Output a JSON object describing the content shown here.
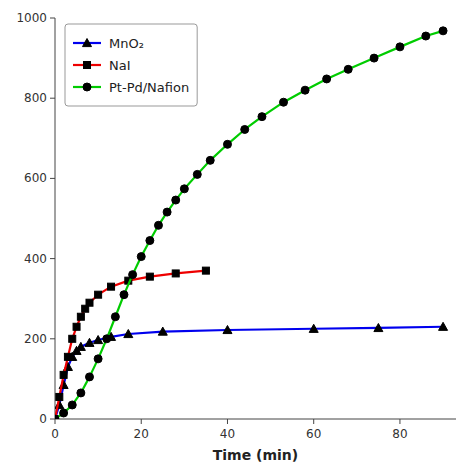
{
  "chart_data": {
    "type": "line",
    "xlabel": "Time (min)",
    "xlim": [
      0,
      93
    ],
    "ylim": [
      0,
      1000
    ],
    "xticks": [
      0,
      20,
      40,
      60,
      80
    ],
    "yticks": [
      0,
      200,
      400,
      600,
      800,
      1000
    ],
    "grid": false,
    "legend": "upper left",
    "series": [
      {
        "name": "MnO₂",
        "color": "#0000ee",
        "marker": "triangle",
        "x": [
          0,
          1,
          2,
          3,
          4,
          5,
          6,
          8,
          10,
          13,
          17,
          25,
          40,
          60,
          75,
          90
        ],
        "values": [
          0,
          35,
          85,
          130,
          155,
          170,
          180,
          190,
          197,
          205,
          212,
          218,
          222,
          225,
          227,
          230
        ]
      },
      {
        "name": "NaI",
        "color": "#ee0000",
        "marker": "square",
        "x": [
          0,
          1,
          2,
          3,
          4,
          5,
          6,
          7,
          8,
          10,
          13,
          17,
          22,
          28,
          35
        ],
        "values": [
          0,
          55,
          110,
          155,
          200,
          230,
          255,
          275,
          290,
          310,
          330,
          345,
          355,
          363,
          370
        ]
      },
      {
        "name": "Pt-Pd/Nafion",
        "color": "#00cc00",
        "marker": "circle",
        "x": [
          0,
          2,
          4,
          6,
          8,
          10,
          12,
          14,
          16,
          18,
          20,
          22,
          24,
          26,
          28,
          30,
          33,
          36,
          40,
          44,
          48,
          53,
          58,
          63,
          68,
          74,
          80,
          86,
          90
        ],
        "values": [
          0,
          15,
          35,
          65,
          105,
          150,
          200,
          255,
          310,
          360,
          405,
          445,
          483,
          516,
          546,
          574,
          610,
          645,
          685,
          722,
          754,
          790,
          820,
          848,
          872,
          900,
          928,
          955,
          968
        ]
      }
    ]
  }
}
